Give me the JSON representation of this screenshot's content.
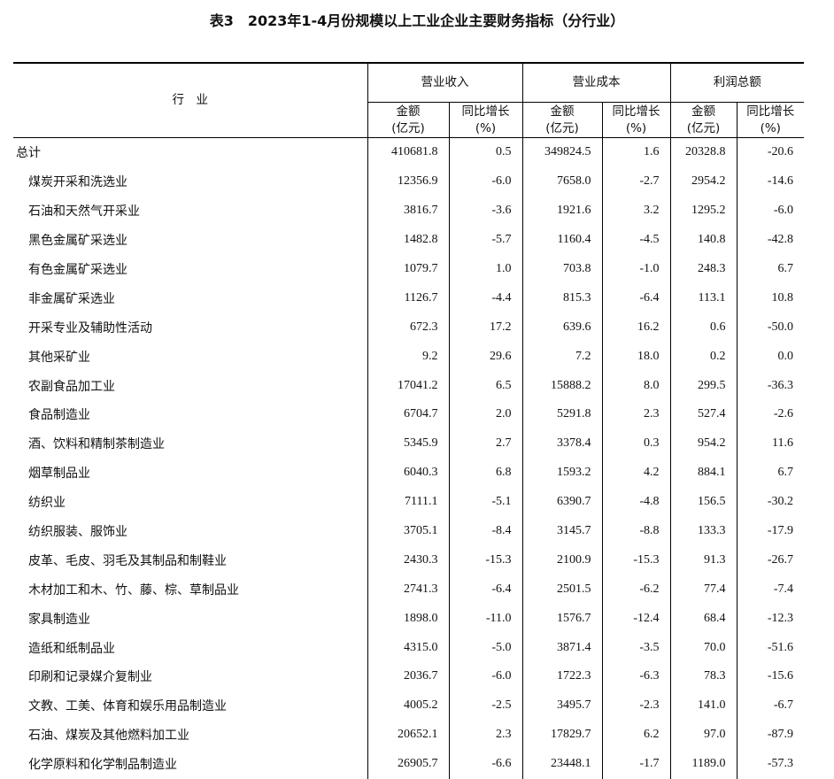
{
  "title": "表3　2023年1-4月份规模以上工业企业主要财务指标（分行业）",
  "header": {
    "industry": "行　业",
    "groups": [
      "营业收入",
      "营业成本",
      "利润总额"
    ],
    "sub": {
      "amount": "金额",
      "amount_unit": "(亿元)",
      "growth": "同比增长",
      "growth_unit": "(%)"
    }
  },
  "rows": [
    {
      "name": "总计",
      "v": [
        "410681.8",
        "0.5",
        "349824.5",
        "1.6",
        "20328.8",
        "-20.6"
      ]
    },
    {
      "name": "煤炭开采和洗选业",
      "v": [
        "12356.9",
        "-6.0",
        "7658.0",
        "-2.7",
        "2954.2",
        "-14.6"
      ]
    },
    {
      "name": "石油和天然气开采业",
      "v": [
        "3816.7",
        "-3.6",
        "1921.6",
        "3.2",
        "1295.2",
        "-6.0"
      ]
    },
    {
      "name": "黑色金属矿采选业",
      "v": [
        "1482.8",
        "-5.7",
        "1160.4",
        "-4.5",
        "140.8",
        "-42.8"
      ]
    },
    {
      "name": "有色金属矿采选业",
      "v": [
        "1079.7",
        "1.0",
        "703.8",
        "-1.0",
        "248.3",
        "6.7"
      ]
    },
    {
      "name": "非金属矿采选业",
      "v": [
        "1126.7",
        "-4.4",
        "815.3",
        "-6.4",
        "113.1",
        "10.8"
      ]
    },
    {
      "name": "开采专业及辅助性活动",
      "v": [
        "672.3",
        "17.2",
        "639.6",
        "16.2",
        "0.6",
        "-50.0"
      ]
    },
    {
      "name": "其他采矿业",
      "v": [
        "9.2",
        "29.6",
        "7.2",
        "18.0",
        "0.2",
        "0.0"
      ]
    },
    {
      "name": "农副食品加工业",
      "v": [
        "17041.2",
        "6.5",
        "15888.2",
        "8.0",
        "299.5",
        "-36.3"
      ]
    },
    {
      "name": "食品制造业",
      "v": [
        "6704.7",
        "2.0",
        "5291.8",
        "2.3",
        "527.4",
        "-2.6"
      ]
    },
    {
      "name": "酒、饮料和精制茶制造业",
      "v": [
        "5345.9",
        "2.7",
        "3378.4",
        "0.3",
        "954.2",
        "11.6"
      ]
    },
    {
      "name": "烟草制品业",
      "v": [
        "6040.3",
        "6.8",
        "1593.2",
        "4.2",
        "884.1",
        "6.7"
      ]
    },
    {
      "name": "纺织业",
      "v": [
        "7111.1",
        "-5.1",
        "6390.7",
        "-4.8",
        "156.5",
        "-30.2"
      ]
    },
    {
      "name": "纺织服装、服饰业",
      "v": [
        "3705.1",
        "-8.4",
        "3145.7",
        "-8.8",
        "133.3",
        "-17.9"
      ]
    },
    {
      "name": "皮革、毛皮、羽毛及其制品和制鞋业",
      "v": [
        "2430.3",
        "-15.3",
        "2100.9",
        "-15.3",
        "91.3",
        "-26.7"
      ]
    },
    {
      "name": "木材加工和木、竹、藤、棕、草制品业",
      "v": [
        "2741.3",
        "-6.4",
        "2501.5",
        "-6.2",
        "77.4",
        "-7.4"
      ]
    },
    {
      "name": "家具制造业",
      "v": [
        "1898.0",
        "-11.0",
        "1576.7",
        "-12.4",
        "68.4",
        "-12.3"
      ]
    },
    {
      "name": "造纸和纸制品业",
      "v": [
        "4315.0",
        "-5.0",
        "3871.4",
        "-3.5",
        "70.0",
        "-51.6"
      ]
    },
    {
      "name": "印刷和记录媒介复制业",
      "v": [
        "2036.7",
        "-6.0",
        "1722.3",
        "-6.3",
        "78.3",
        "-15.6"
      ]
    },
    {
      "name": "文教、工美、体育和娱乐用品制造业",
      "v": [
        "4005.2",
        "-2.5",
        "3495.7",
        "-2.3",
        "141.0",
        "-6.7"
      ]
    },
    {
      "name": "石油、煤炭及其他燃料加工业",
      "v": [
        "20652.1",
        "2.3",
        "17829.7",
        "6.2",
        "97.0",
        "-87.9"
      ]
    },
    {
      "name": "化学原料和化学制品制造业",
      "v": [
        "26905.7",
        "-6.6",
        "23448.1",
        "-1.7",
        "1189.0",
        "-57.3"
      ]
    }
  ]
}
